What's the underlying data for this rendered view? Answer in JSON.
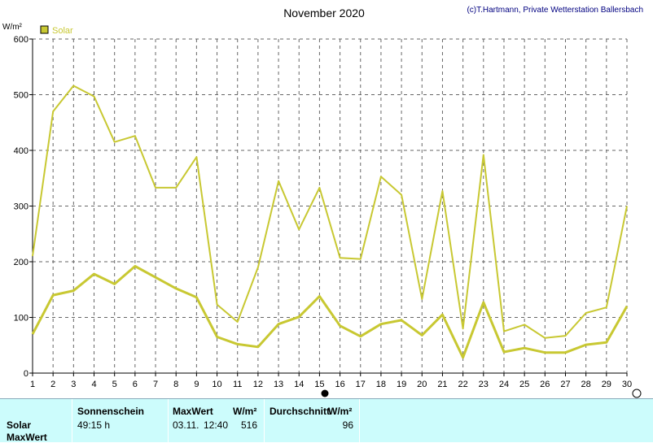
{
  "chart_data": {
    "type": "line",
    "title": "November 2020",
    "credit": "(c)T.Hartmann, Private Wetterstation Ballersbach",
    "ylabel": "W/m²",
    "ylim": [
      0,
      600
    ],
    "yticks": [
      0,
      100,
      200,
      300,
      400,
      500,
      600
    ],
    "x": [
      1,
      2,
      3,
      4,
      5,
      6,
      7,
      8,
      9,
      10,
      11,
      12,
      13,
      14,
      15,
      16,
      17,
      18,
      19,
      20,
      21,
      22,
      23,
      24,
      25,
      26,
      27,
      28,
      29,
      30
    ],
    "legend": [
      "Solar"
    ],
    "series": [
      {
        "name": "Solar",
        "role": "max",
        "color": "#c8c832",
        "values": [
          210,
          470,
          516,
          497,
          415,
          426,
          333,
          333,
          388,
          123,
          92,
          190,
          345,
          258,
          333,
          207,
          205,
          353,
          320,
          133,
          327,
          80,
          392,
          75,
          87,
          63,
          67,
          108,
          118,
          300
        ]
      },
      {
        "name": "Solar",
        "role": "average",
        "color": "#c8c832",
        "values": [
          70,
          140,
          148,
          178,
          160,
          192,
          172,
          152,
          136,
          65,
          52,
          47,
          88,
          101,
          138,
          85,
          66,
          88,
          95,
          68,
          105,
          28,
          127,
          38,
          45,
          37,
          37,
          51,
          55,
          120
        ]
      }
    ]
  },
  "table": {
    "headers": {
      "sonnenschein": "Sonnenschein",
      "maxwert": "MaxWert",
      "maxwert_unit": "W/m²",
      "durchschnitt": "Durchschnitt",
      "durchschnitt_unit": "W/m²"
    },
    "rows": {
      "solar": "Solar",
      "maxwert": "MaxWert"
    },
    "values": {
      "sonnenschein": "49:15 h",
      "max_date": "03.11.",
      "max_time": "12:40",
      "max_value": "516",
      "avg_value": "96"
    }
  }
}
